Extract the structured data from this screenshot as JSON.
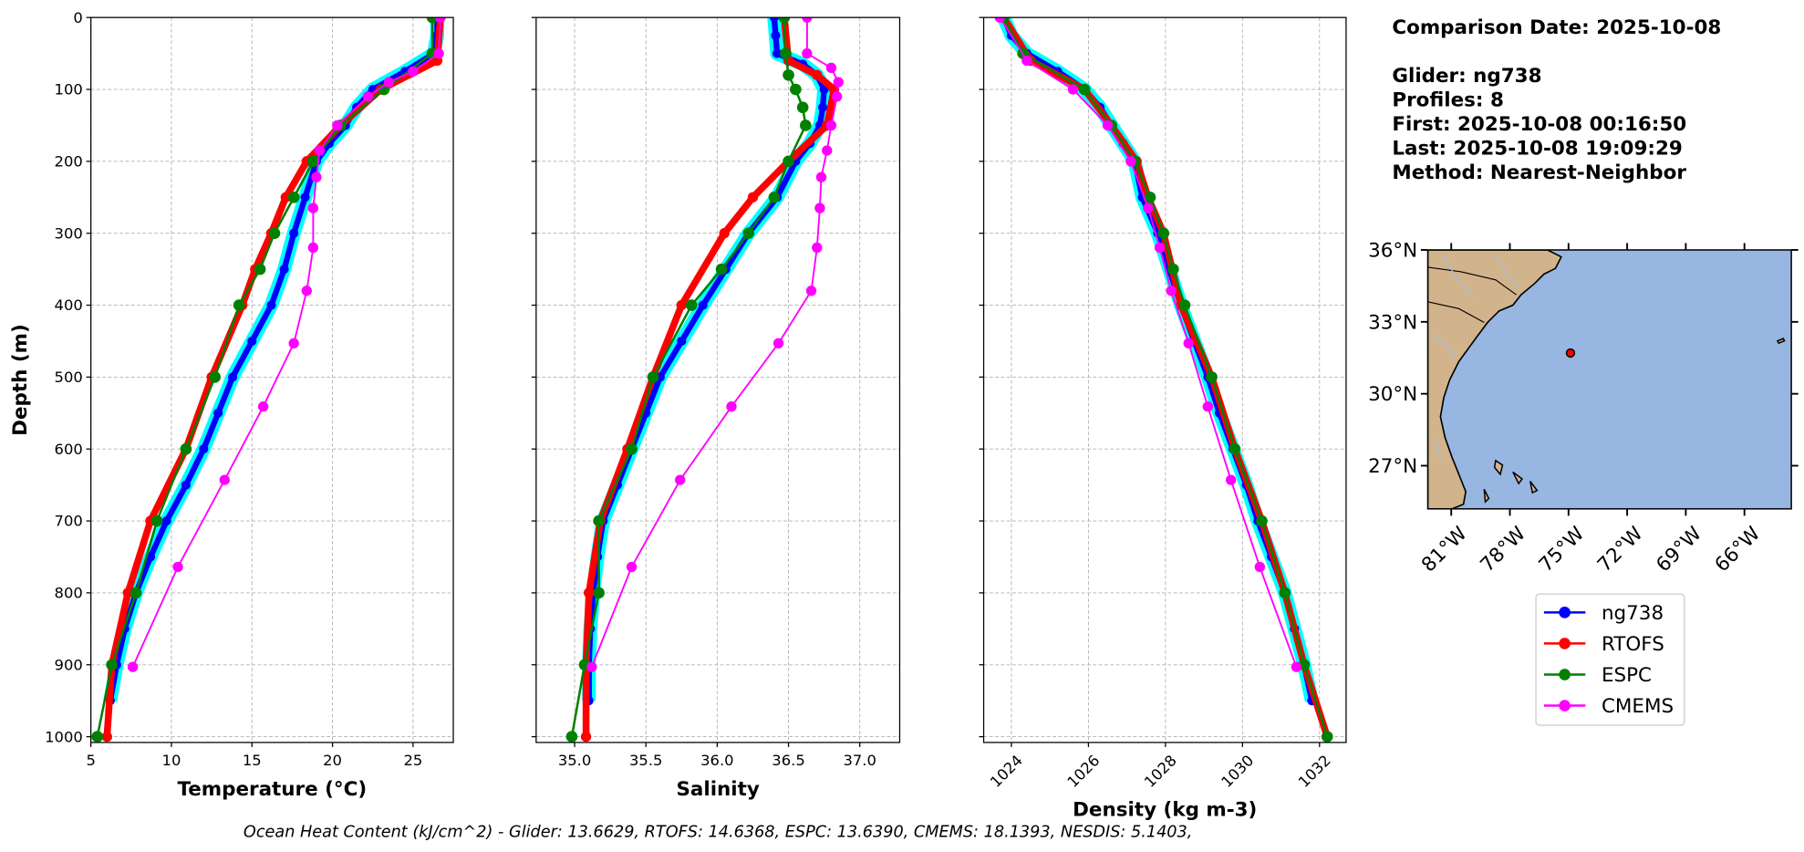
{
  "info_text": [
    "Comparison Date: 2025-10-08",
    "Glider: ng738",
    "Profiles: 8",
    "First: 2025-10-08 00:16:50",
    "Last: 2025-10-08 19:09:29",
    "Method: Nearest-Neighbor"
  ],
  "footnote": "Ocean Heat Content (kJ/cm^2) - Glider: 13.6629,  RTOFS: 14.6368,  ESPC: 13.6390,  CMEMS: 18.1393,  NESDIS: 5.1403,",
  "chart_data": [
    {
      "type": "line",
      "xlabel": "Temperature (°C)",
      "ylabel": "Depth (m)",
      "grid": true,
      "xlim": [
        5,
        27.5
      ],
      "xticks": [
        5,
        10,
        15,
        20,
        25
      ],
      "ylim": [
        1008,
        0
      ],
      "yticks": [
        0,
        100,
        200,
        300,
        400,
        500,
        600,
        700,
        800,
        900,
        1000
      ],
      "series": [
        {
          "name": "ng738",
          "color": "blue",
          "band_color": "cyan",
          "y": [
            0,
            25,
            50,
            75,
            100,
            125,
            150,
            175,
            200,
            250,
            300,
            350,
            400,
            450,
            500,
            550,
            600,
            650,
            700,
            750,
            800,
            850,
            900,
            950
          ],
          "x": [
            26.5,
            26.5,
            26.3,
            24.5,
            22.5,
            21.5,
            20.8,
            19.8,
            19.0,
            18.3,
            17.6,
            17.0,
            16.2,
            15.0,
            13.8,
            12.9,
            12.0,
            10.9,
            9.7,
            8.7,
            7.8,
            7.1,
            6.6,
            6.2
          ]
        },
        {
          "name": "RTOFS",
          "color": "red",
          "y": [
            0,
            60,
            100,
            150,
            200,
            250,
            300,
            350,
            400,
            500,
            600,
            700,
            800,
            900,
            1000
          ],
          "x": [
            26.7,
            26.5,
            23.0,
            20.5,
            18.4,
            17.1,
            16.2,
            15.2,
            14.4,
            12.5,
            10.9,
            8.7,
            7.3,
            6.3,
            6.0
          ]
        },
        {
          "name": "ESPC",
          "color": "green",
          "y": [
            0,
            50,
            100,
            150,
            200,
            250,
            300,
            350,
            400,
            500,
            600,
            700,
            800,
            900,
            1000
          ],
          "x": [
            26.2,
            26.2,
            23.2,
            20.5,
            18.8,
            17.6,
            16.4,
            15.5,
            14.2,
            12.7,
            10.9,
            9.1,
            7.8,
            6.3,
            5.4
          ]
        },
        {
          "name": "CMEMS",
          "color": "magenta",
          "y": [
            0,
            50,
            75,
            90,
            110,
            150,
            185,
            222,
            265,
            320,
            380,
            453,
            541,
            643,
            764,
            903
          ],
          "x": [
            26.7,
            26.6,
            25.0,
            23.5,
            22.2,
            20.3,
            19.2,
            19.0,
            18.8,
            18.8,
            18.4,
            17.6,
            15.7,
            13.3,
            10.4,
            7.6
          ]
        }
      ]
    },
    {
      "type": "line",
      "xlabel": "Salinity",
      "grid": true,
      "xlim": [
        34.73,
        37.28
      ],
      "xticks": [
        {
          "value": 35,
          "label": "35.0"
        },
        35.5,
        {
          "value": 36,
          "label": "36.0"
        },
        36.5,
        {
          "value": 37,
          "label": "37.0"
        }
      ],
      "ylim": [
        1008,
        0
      ],
      "yticks": [
        0,
        100,
        200,
        300,
        400,
        500,
        600,
        700,
        800,
        900,
        1000
      ],
      "series": [
        {
          "name": "ng738",
          "color": "blue",
          "band_color": "cyan",
          "y": [
            0,
            25,
            50,
            65,
            80,
            100,
            125,
            150,
            175,
            200,
            250,
            300,
            350,
            400,
            450,
            500,
            550,
            600,
            650,
            700,
            750,
            800,
            850,
            900,
            950
          ],
          "x": [
            36.4,
            36.41,
            36.42,
            36.6,
            36.7,
            36.75,
            36.74,
            36.72,
            36.65,
            36.55,
            36.42,
            36.22,
            36.06,
            35.9,
            35.75,
            35.6,
            35.5,
            35.4,
            35.3,
            35.2,
            35.16,
            35.13,
            35.11,
            35.1,
            35.1
          ]
        },
        {
          "name": "RTOFS",
          "color": "red",
          "y": [
            0,
            60,
            80,
            100,
            150,
            200,
            250,
            300,
            400,
            500,
            600,
            700,
            800,
            900,
            1000
          ],
          "x": [
            36.47,
            36.5,
            36.7,
            36.82,
            36.77,
            36.5,
            36.25,
            36.05,
            35.75,
            35.55,
            35.37,
            35.18,
            35.1,
            35.08,
            35.08
          ]
        },
        {
          "name": "ESPC",
          "color": "green",
          "y": [
            0,
            50,
            80,
            100,
            125,
            150,
            200,
            250,
            300,
            350,
            400,
            500,
            600,
            700,
            800,
            900,
            1000
          ],
          "x": [
            36.47,
            36.48,
            36.5,
            36.55,
            36.6,
            36.62,
            36.5,
            36.4,
            36.22,
            36.03,
            35.82,
            35.55,
            35.4,
            35.17,
            35.17,
            35.07,
            34.98
          ]
        },
        {
          "name": "CMEMS",
          "color": "magenta",
          "y": [
            0,
            50,
            70,
            90,
            110,
            150,
            185,
            222,
            265,
            320,
            380,
            453,
            541,
            643,
            764,
            903
          ],
          "x": [
            36.63,
            36.63,
            36.8,
            36.85,
            36.84,
            36.8,
            36.77,
            36.73,
            36.72,
            36.7,
            36.66,
            36.43,
            36.1,
            35.74,
            35.4,
            35.12
          ]
        }
      ]
    },
    {
      "type": "line",
      "xlabel": "Density (kg m-3)",
      "grid": true,
      "xlim": [
        1023.28,
        1032.69
      ],
      "xticks": [
        1024,
        1026,
        1028,
        1030,
        1032
      ],
      "ylim": [
        1008,
        0
      ],
      "yticks": [
        0,
        100,
        200,
        300,
        400,
        500,
        600,
        700,
        800,
        900,
        1000
      ],
      "series": [
        {
          "name": "ng738",
          "color": "blue",
          "band_color": "cyan",
          "y": [
            0,
            25,
            50,
            75,
            100,
            125,
            150,
            175,
            200,
            250,
            300,
            350,
            400,
            450,
            500,
            550,
            600,
            650,
            700,
            750,
            800,
            850,
            900,
            950
          ],
          "x": [
            1023.8,
            1024.0,
            1024.4,
            1025.2,
            1025.9,
            1026.3,
            1026.6,
            1026.9,
            1027.2,
            1027.4,
            1027.8,
            1028.1,
            1028.4,
            1028.75,
            1029.1,
            1029.4,
            1029.75,
            1030.1,
            1030.4,
            1030.75,
            1031.1,
            1031.35,
            1031.6,
            1031.8
          ]
        },
        {
          "name": "RTOFS",
          "color": "red",
          "y": [
            0,
            60,
            100,
            150,
            200,
            250,
            300,
            400,
            500,
            600,
            700,
            800,
            900,
            1000
          ],
          "x": [
            1023.8,
            1024.5,
            1025.9,
            1026.6,
            1027.25,
            1027.55,
            1027.95,
            1028.4,
            1029.2,
            1029.8,
            1030.5,
            1031.1,
            1031.6,
            1032.2
          ]
        },
        {
          "name": "ESPC",
          "color": "green",
          "y": [
            0,
            50,
            100,
            150,
            200,
            250,
            300,
            350,
            400,
            500,
            600,
            700,
            800,
            900,
            1000
          ],
          "x": [
            1023.8,
            1024.3,
            1025.9,
            1026.6,
            1027.2,
            1027.6,
            1027.95,
            1028.2,
            1028.5,
            1029.2,
            1029.8,
            1030.5,
            1031.1,
            1031.6,
            1032.2
          ]
        },
        {
          "name": "CMEMS",
          "color": "magenta",
          "y": [
            0,
            60,
            100,
            150,
            200,
            265,
            320,
            380,
            453,
            541,
            643,
            764,
            903
          ],
          "x": [
            1023.7,
            1024.4,
            1025.6,
            1026.5,
            1027.1,
            1027.55,
            1027.85,
            1028.15,
            1028.6,
            1029.1,
            1029.7,
            1030.45,
            1031.4
          ]
        }
      ]
    },
    {
      "type": "map",
      "land_color": "#d2b48c",
      "ocean_color": "#97b6e1",
      "xlim": [
        -82.2,
        -63.6
      ],
      "ylim": [
        25.2,
        36
      ],
      "xticks": [
        {
          "value": -81,
          "label": "81°W"
        },
        {
          "value": -78,
          "label": "78°W"
        },
        {
          "value": -75,
          "label": "75°W"
        },
        {
          "value": -72,
          "label": "72°W"
        },
        {
          "value": -69,
          "label": "69°W"
        },
        {
          "value": -66,
          "label": "66°W"
        }
      ],
      "yticks": [
        {
          "value": 27,
          "label": "27°N"
        },
        {
          "value": 30,
          "label": "30°N"
        },
        {
          "value": 33,
          "label": "33°N"
        },
        {
          "value": 36,
          "label": "36°N"
        }
      ],
      "points": [
        {
          "lon": -74.9,
          "lat": 31.7,
          "color": "red"
        }
      ]
    }
  ]
}
